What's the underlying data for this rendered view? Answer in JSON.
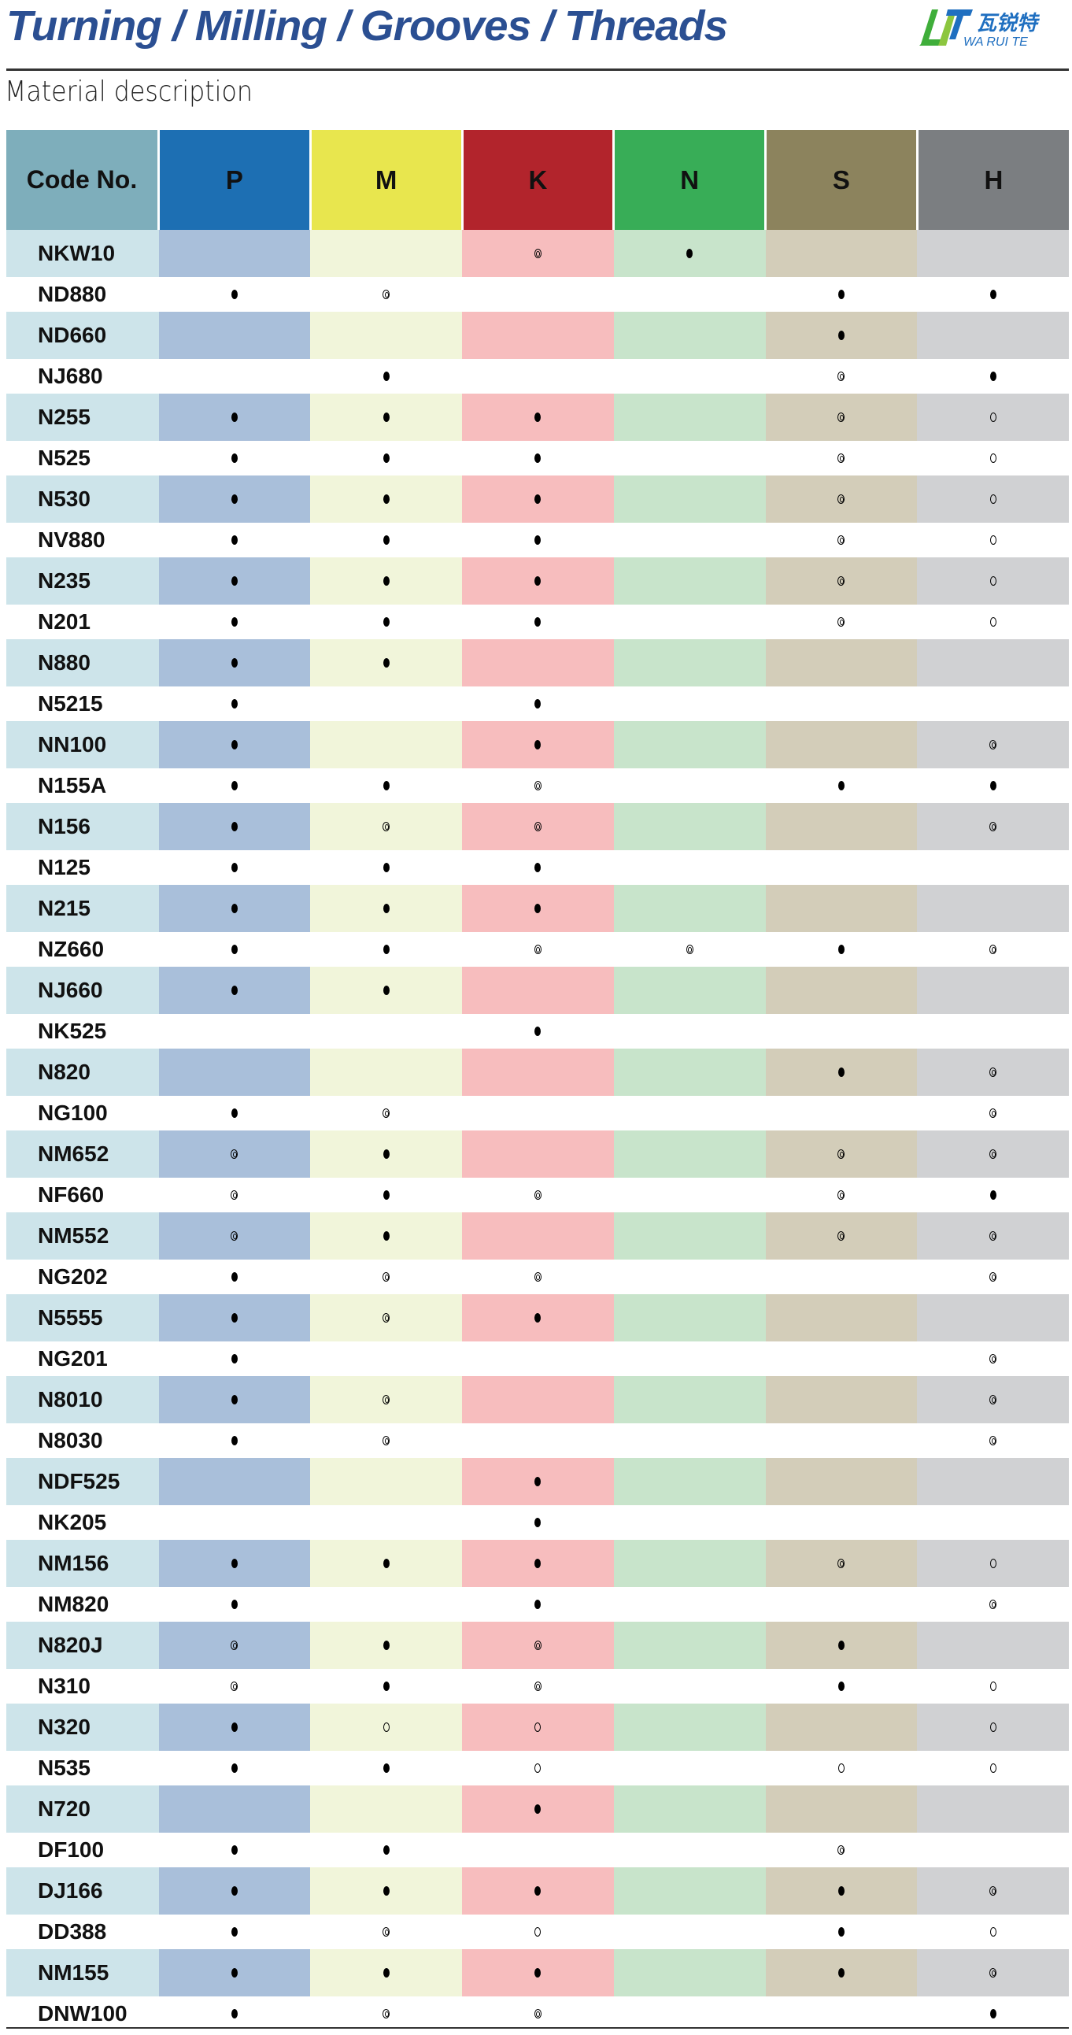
{
  "header": {
    "title": "Turning / Milling / Grooves / Threads",
    "subtitle": "Material description",
    "logo": {
      "text_cn": "瓦锐特",
      "text_en": "WA RUI TE",
      "colors": [
        "#3fae3a",
        "#1f6fc0"
      ]
    }
  },
  "legend_symbols": {
    "full": "●",
    "double": "◎",
    "open": "○"
  },
  "table": {
    "columns": [
      {
        "label": "Code No.",
        "header_color": "#7eaebb",
        "cell_color": "#cde4ea"
      },
      {
        "label": "P",
        "header_color": "#1d6fb3",
        "cell_color": "#a9bfda"
      },
      {
        "label": "M",
        "header_color": "#e8e64e",
        "cell_color": "#f1f5da"
      },
      {
        "label": "K",
        "header_color": "#b2242c",
        "cell_color": "#f7bdbe"
      },
      {
        "label": "N",
        "header_color": "#38ad57",
        "cell_color": "#c8e4cb"
      },
      {
        "label": "S",
        "header_color": "#8c835d",
        "cell_color": "#d3cdb9"
      },
      {
        "label": "H",
        "header_color": "#7b7e81",
        "cell_color": "#d0d1d3"
      }
    ],
    "rows": [
      {
        "code": "NKW10",
        "marks": [
          "",
          "",
          "◎",
          "●",
          "",
          ""
        ]
      },
      {
        "code": "ND880",
        "marks": [
          "●",
          "◎",
          "",
          "",
          "●",
          "●"
        ]
      },
      {
        "code": "ND660",
        "marks": [
          "",
          "",
          "",
          "",
          "●",
          ""
        ]
      },
      {
        "code": "NJ680",
        "marks": [
          "",
          "●",
          "",
          "",
          "◎",
          "●"
        ]
      },
      {
        "code": "N255",
        "marks": [
          "●",
          "●",
          "●",
          "",
          "◎",
          "○"
        ]
      },
      {
        "code": "N525",
        "marks": [
          "●",
          "●",
          "●",
          "",
          "◎",
          "○"
        ]
      },
      {
        "code": "N530",
        "marks": [
          "●",
          "●",
          "●",
          "",
          "◎",
          "○"
        ]
      },
      {
        "code": "NV880",
        "marks": [
          "●",
          "●",
          "●",
          "",
          "◎",
          "○"
        ]
      },
      {
        "code": "N235",
        "marks": [
          "●",
          "●",
          "●",
          "",
          "◎",
          "○"
        ]
      },
      {
        "code": "N201",
        "marks": [
          "●",
          "●",
          "●",
          "",
          "◎",
          "○"
        ]
      },
      {
        "code": "N880",
        "marks": [
          "●",
          "●",
          "",
          "",
          "",
          ""
        ]
      },
      {
        "code": "N5215",
        "marks": [
          "●",
          "",
          "●",
          "",
          "",
          ""
        ]
      },
      {
        "code": "NN100",
        "marks": [
          "●",
          "",
          "●",
          "",
          "",
          "◎"
        ]
      },
      {
        "code": "N155A",
        "marks": [
          "●",
          "●",
          "◎",
          "",
          "●",
          "●"
        ]
      },
      {
        "code": "N156",
        "marks": [
          "●",
          "◎",
          "◎",
          "",
          "",
          "◎"
        ]
      },
      {
        "code": "N125",
        "marks": [
          "●",
          "●",
          "●",
          "",
          "",
          ""
        ]
      },
      {
        "code": "N215",
        "marks": [
          "●",
          "●",
          "●",
          "",
          "",
          ""
        ]
      },
      {
        "code": "NZ660",
        "marks": [
          "●",
          "●",
          "◎",
          "◎",
          "●",
          "◎"
        ]
      },
      {
        "code": "NJ660",
        "marks": [
          "●",
          "●",
          "",
          "",
          "",
          ""
        ]
      },
      {
        "code": "NK525",
        "marks": [
          "",
          "",
          "●",
          "",
          "",
          ""
        ]
      },
      {
        "code": "N820",
        "marks": [
          "",
          "",
          "",
          "",
          "●",
          "◎"
        ]
      },
      {
        "code": "NG100",
        "marks": [
          "●",
          "◎",
          "",
          "",
          "",
          "◎"
        ]
      },
      {
        "code": "NM652",
        "marks": [
          "◎",
          "●",
          "",
          "",
          "◎",
          "◎"
        ]
      },
      {
        "code": "NF660",
        "marks": [
          "◎",
          "●",
          "◎",
          "",
          "◎",
          "●"
        ]
      },
      {
        "code": "NM552",
        "marks": [
          "◎",
          "●",
          "",
          "",
          "◎",
          "◎"
        ]
      },
      {
        "code": "NG202",
        "marks": [
          "●",
          "◎",
          "◎",
          "",
          "",
          "◎"
        ]
      },
      {
        "code": "N5555",
        "marks": [
          "●",
          "◎",
          "●",
          "",
          "",
          ""
        ]
      },
      {
        "code": "NG201",
        "marks": [
          "●",
          "",
          "",
          "",
          "",
          "◎"
        ]
      },
      {
        "code": "N8010",
        "marks": [
          "●",
          "◎",
          "",
          "",
          "",
          "◎"
        ]
      },
      {
        "code": "N8030",
        "marks": [
          "●",
          "◎",
          "",
          "",
          "",
          "◎"
        ]
      },
      {
        "code": "NDF525",
        "marks": [
          "",
          "",
          "●",
          "",
          "",
          ""
        ]
      },
      {
        "code": "NK205",
        "marks": [
          "",
          "",
          "●",
          "",
          "",
          ""
        ]
      },
      {
        "code": "NM156",
        "marks": [
          "●",
          "●",
          "●",
          "",
          "◎",
          "○"
        ]
      },
      {
        "code": "NM820",
        "marks": [
          "●",
          "",
          "●",
          "",
          "",
          "◎"
        ]
      },
      {
        "code": "N820J",
        "marks": [
          "◎",
          "●",
          "◎",
          "",
          "●",
          ""
        ]
      },
      {
        "code": "N310",
        "marks": [
          "◎",
          "●",
          "◎",
          "",
          "●",
          "○"
        ]
      },
      {
        "code": "N320",
        "marks": [
          "●",
          "○",
          "○",
          "",
          "",
          "○"
        ]
      },
      {
        "code": "N535",
        "marks": [
          "●",
          "●",
          "○",
          "",
          "○",
          "○"
        ]
      },
      {
        "code": "N720",
        "marks": [
          "",
          "",
          "●",
          "",
          "",
          ""
        ]
      },
      {
        "code": "DF100",
        "marks": [
          "●",
          "●",
          "",
          "",
          "◎",
          ""
        ]
      },
      {
        "code": "DJ166",
        "marks": [
          "●",
          "●",
          "●",
          "",
          "●",
          "◎"
        ]
      },
      {
        "code": "DD388",
        "marks": [
          "●",
          "◎",
          "○",
          "",
          "●",
          "○"
        ]
      },
      {
        "code": "NM155",
        "marks": [
          "●",
          "●",
          "●",
          "",
          "●",
          "◎"
        ]
      },
      {
        "code": "DNW100",
        "marks": [
          "●",
          "◎",
          "◎",
          "",
          "",
          "●"
        ]
      }
    ]
  }
}
